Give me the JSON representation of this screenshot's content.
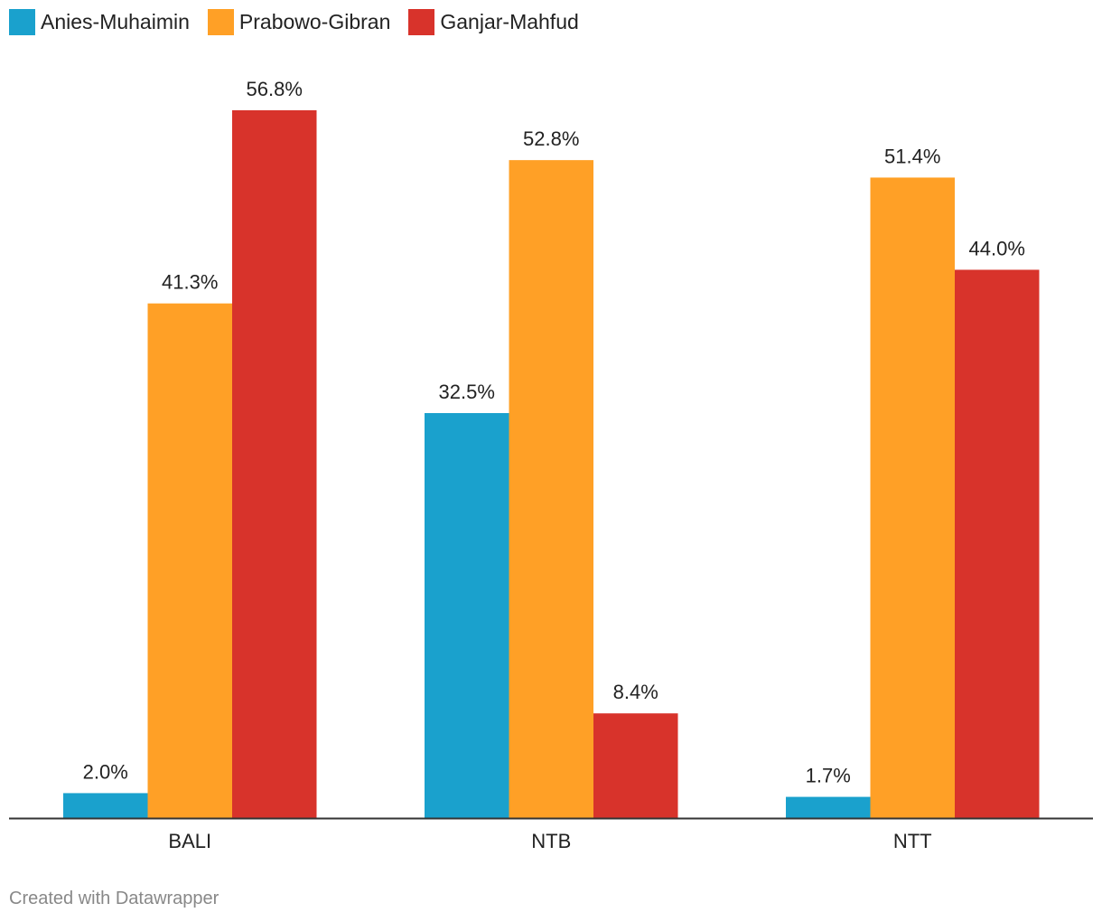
{
  "chart_data": {
    "type": "bar",
    "categories": [
      "BALI",
      "NTB",
      "NTT"
    ],
    "series": [
      {
        "name": "Anies-Muhaimin",
        "color": "#1aa1cd",
        "values": [
          2.0,
          32.5,
          1.7
        ],
        "labels": [
          "2.0%",
          "32.5%",
          "1.7%"
        ]
      },
      {
        "name": "Prabowo-Gibran",
        "color": "#ffa026",
        "values": [
          41.3,
          52.8,
          51.4
        ],
        "labels": [
          "41.3%",
          "52.8%",
          "51.4%"
        ]
      },
      {
        "name": "Ganjar-Mahfud",
        "color": "#d8332b",
        "values": [
          56.8,
          8.4,
          44.0
        ],
        "labels": [
          "56.8%",
          "8.4%",
          "44.0%"
        ]
      }
    ],
    "unit": "%",
    "ylim": [
      0,
      56.8
    ],
    "grid": false,
    "legend": "top-left"
  },
  "footer": {
    "credit": "Created with Datawrapper"
  }
}
